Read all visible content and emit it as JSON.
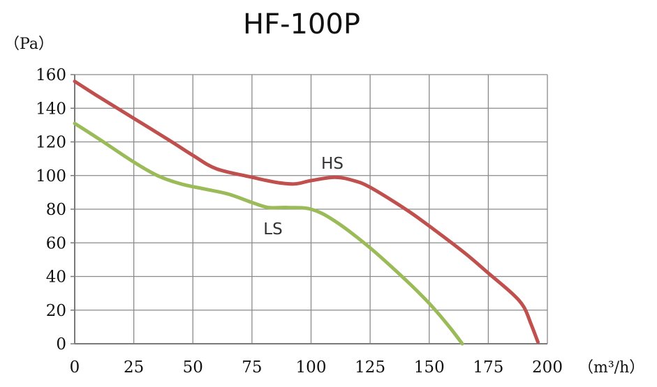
{
  "chart_data": {
    "type": "line",
    "title": "HF-100P",
    "y_unit": "（Pa）",
    "x_unit": "（m³/h）",
    "xlim": [
      0,
      200
    ],
    "ylim": [
      0,
      160
    ],
    "x_ticks": [
      "0",
      "25",
      "50",
      "75",
      "100",
      "125",
      "150",
      "175",
      "200"
    ],
    "y_ticks": [
      "0",
      "20",
      "40",
      "60",
      "80",
      "100",
      "120",
      "140",
      "160"
    ],
    "grid": true,
    "series": [
      {
        "name": "HS",
        "color": "#c0504d",
        "points": [
          [
            0,
            156
          ],
          [
            10,
            147
          ],
          [
            25,
            134
          ],
          [
            40,
            121
          ],
          [
            50,
            112
          ],
          [
            60,
            104
          ],
          [
            75,
            99
          ],
          [
            85,
            96
          ],
          [
            93,
            95
          ],
          [
            100,
            97
          ],
          [
            110,
            99
          ],
          [
            118,
            97
          ],
          [
            125,
            93
          ],
          [
            140,
            80
          ],
          [
            150,
            70
          ],
          [
            165,
            54
          ],
          [
            175,
            42
          ],
          [
            185,
            30
          ],
          [
            190,
            22
          ],
          [
            193,
            12
          ],
          [
            196,
            1
          ]
        ]
      },
      {
        "name": "LS",
        "color": "#9bbb59",
        "points": [
          [
            0,
            131
          ],
          [
            10,
            122
          ],
          [
            25,
            108
          ],
          [
            35,
            100
          ],
          [
            45,
            95
          ],
          [
            55,
            92
          ],
          [
            65,
            89
          ],
          [
            75,
            84
          ],
          [
            82,
            81
          ],
          [
            90,
            81
          ],
          [
            100,
            80
          ],
          [
            110,
            73
          ],
          [
            125,
            57
          ],
          [
            140,
            38
          ],
          [
            150,
            24
          ],
          [
            158,
            11
          ],
          [
            164,
            0
          ]
        ]
      }
    ]
  }
}
